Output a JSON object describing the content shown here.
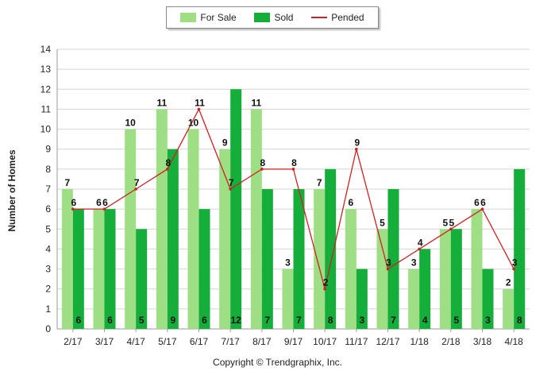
{
  "legend": {
    "for_sale": "For Sale",
    "sold": "Sold",
    "pended": "Pended"
  },
  "copyright": "Copyright © Trendgraphix, Inc.",
  "colors": {
    "for_sale": "#9ede85",
    "sold": "#16ae3b",
    "pended": "#cc2222",
    "grid": "#d4d4d4"
  },
  "chart_data": {
    "type": "bar",
    "ylabel": "Number of Homes",
    "xlabel": "",
    "title": "",
    "ylim": [
      0,
      14
    ],
    "yticks": [
      0,
      1,
      2,
      3,
      4,
      5,
      6,
      7,
      8,
      9,
      10,
      11,
      12,
      13,
      14
    ],
    "grid": true,
    "legend_position": "top-center",
    "categories": [
      "2/17",
      "3/17",
      "4/17",
      "5/17",
      "6/17",
      "7/17",
      "8/17",
      "9/17",
      "10/17",
      "11/17",
      "12/17",
      "1/18",
      "2/18",
      "3/18",
      "4/18"
    ],
    "series": [
      {
        "name": "For Sale",
        "kind": "bar",
        "values": [
          7,
          6,
          10,
          11,
          10,
          9,
          11,
          3,
          7,
          6,
          5,
          3,
          5,
          6,
          2
        ]
      },
      {
        "name": "Sold",
        "kind": "bar",
        "values": [
          6,
          6,
          5,
          9,
          6,
          12,
          7,
          7,
          8,
          3,
          7,
          4,
          5,
          3,
          8
        ]
      },
      {
        "name": "Pended",
        "kind": "line",
        "values": [
          6,
          6,
          7,
          8,
          11,
          7,
          8,
          8,
          2,
          9,
          3,
          4,
          5,
          6,
          3
        ]
      }
    ]
  }
}
